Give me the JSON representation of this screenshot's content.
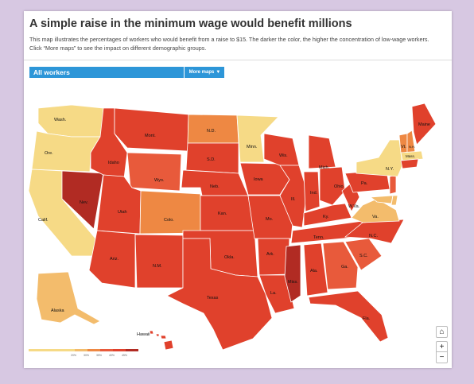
{
  "title": "A simple raise in the minimum wage would benefit millions",
  "description": "This map illustrates the percentages of workers who would benefit from a raise to $15. The darker the color, the higher the concentration of low-wage workers. Click “More maps” to see the impact on different demographic groups.",
  "selector": {
    "selected": "All workers",
    "more_label": "More maps"
  },
  "legend": {
    "ticks": [
      "20%",
      "30%",
      "35%",
      "40%",
      "45%"
    ],
    "colors": [
      "#f6da86",
      "#f3bc6c",
      "#ee8843",
      "#e85a3b",
      "#e0412c",
      "#b12b23"
    ]
  },
  "controls": {
    "home": "⌂",
    "zoom_in": "+",
    "zoom_out": "−"
  },
  "states": {
    "wash": "Wash.",
    "ore": "Ore.",
    "calif": "Calif.",
    "nev": "Nev.",
    "idaho": "Idaho",
    "mont": "Mont.",
    "wyo": "Wyo.",
    "utah": "Utah",
    "ariz": "Ariz.",
    "colo": "Colo.",
    "nm": "N.M.",
    "nd": "N.D.",
    "sd": "S.D.",
    "neb": "Neb.",
    "kan": "Kan.",
    "okla": "Okla.",
    "texas": "Texas",
    "minn": "Minn.",
    "iowa": "Iowa",
    "mo": "Mo.",
    "ark": "Ark.",
    "la": "La.",
    "wis": "Wis.",
    "ill": "Ill.",
    "mich": "Mich.",
    "ind": "Ind.",
    "ohio": "Ohio",
    "ky": "Ky.",
    "tenn": "Tenn.",
    "miss": "Miss.",
    "ala": "Ala.",
    "ga": "Ga.",
    "fla": "Fla.",
    "sc": "S.C.",
    "nc": "N.C.",
    "va": "Va.",
    "wva": "W.Va.",
    "pa": "Pa.",
    "ny": "N.Y.",
    "vt": "Vt.",
    "nh": "N.H.",
    "maine": "Maine",
    "mass": "Mass.",
    "alaska": "Alaska",
    "hawaii": "Hawaii"
  }
}
